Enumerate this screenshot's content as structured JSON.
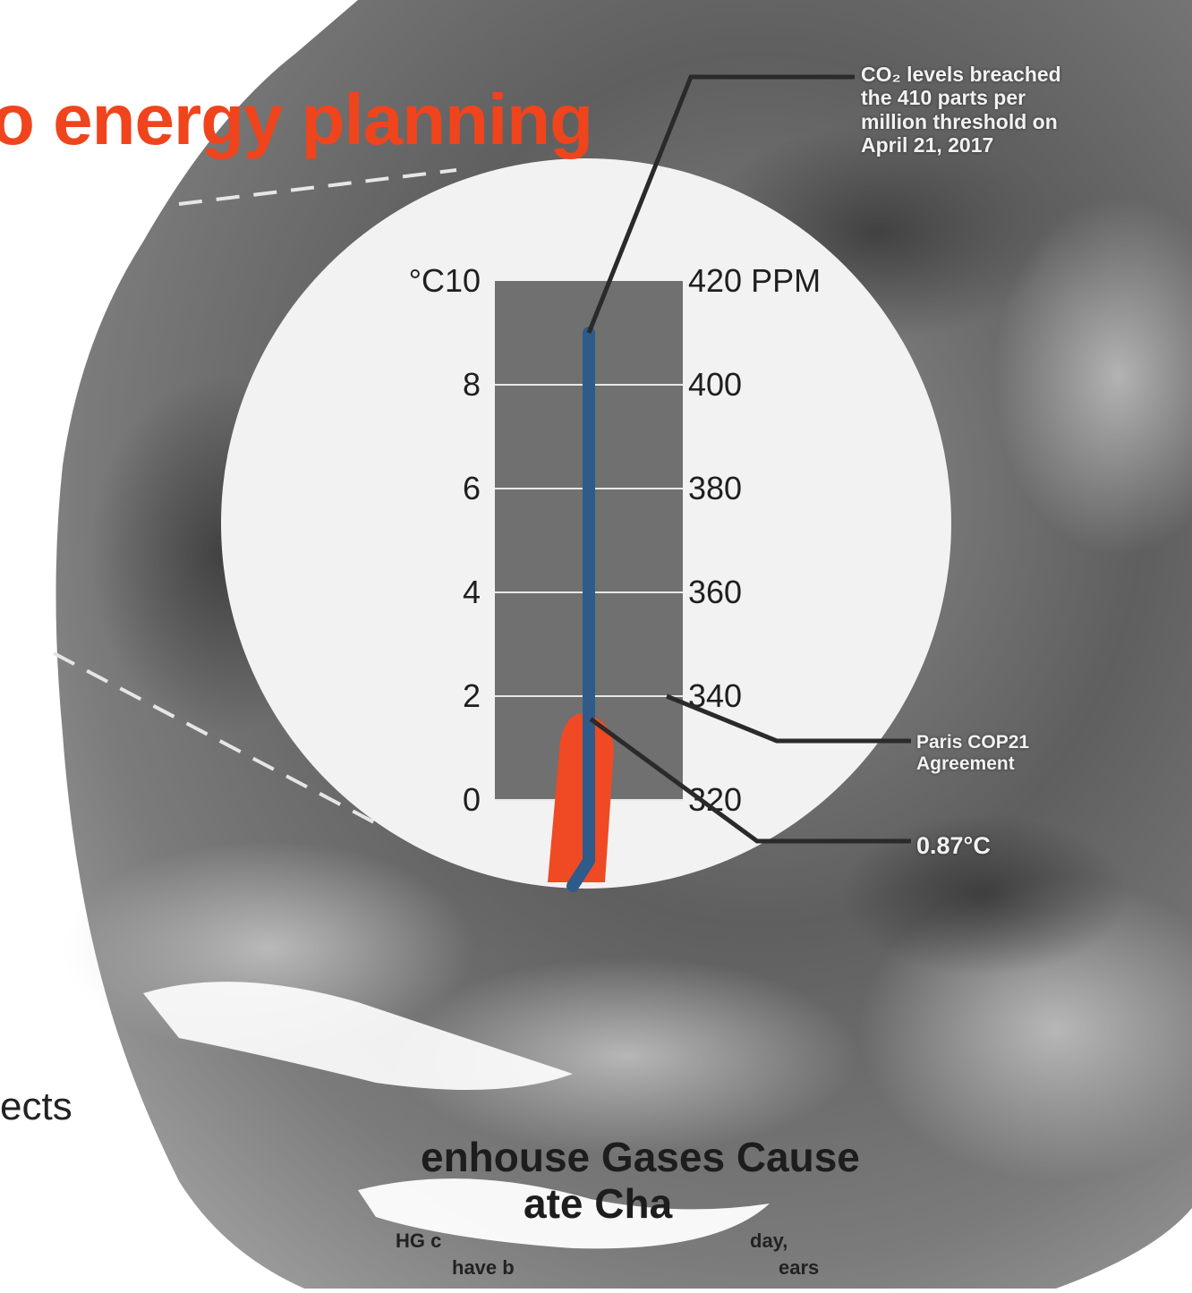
{
  "slide": {
    "title_fragment": "o energy planning",
    "body_fragment": "ects"
  },
  "callouts": {
    "co2_lines": [
      "CO₂ levels breached",
      "the 410 parts per",
      "million threshold on",
      "April 21, 2017"
    ],
    "paris_lines": [
      "Paris COP21",
      "Agreement"
    ],
    "temperature": "0.87°C"
  },
  "caption": {
    "headline_line1": "enhouse Gases Cause",
    "headline_line2": "ate Cha",
    "body_fragments": [
      "HG c",
      "day,",
      "have b",
      "ears"
    ]
  },
  "colors": {
    "accent": "#f0441c",
    "co2_line": "#2f5b8a",
    "temperature_fill": "#ef4a23",
    "gauge_body": "#707070",
    "disc": "#f2f2f2"
  },
  "chart_data": {
    "type": "thermometer",
    "left_axis": {
      "label": "°C",
      "ticks": [
        "10",
        "8",
        "6",
        "4",
        "2",
        "0"
      ],
      "range": [
        0,
        10
      ]
    },
    "right_axis": {
      "label": "PPM",
      "ticks": [
        "420 PPM",
        "400",
        "380",
        "360",
        "340",
        "320"
      ],
      "range": [
        320,
        420
      ]
    },
    "series": [
      {
        "name": "Temperature",
        "unit": "°C",
        "value": 0.87
      },
      {
        "name": "CO2",
        "unit": "PPM",
        "value": 410
      }
    ],
    "markers": [
      {
        "label": "Paris COP21 Agreement",
        "value_ppm": 340
      }
    ]
  }
}
